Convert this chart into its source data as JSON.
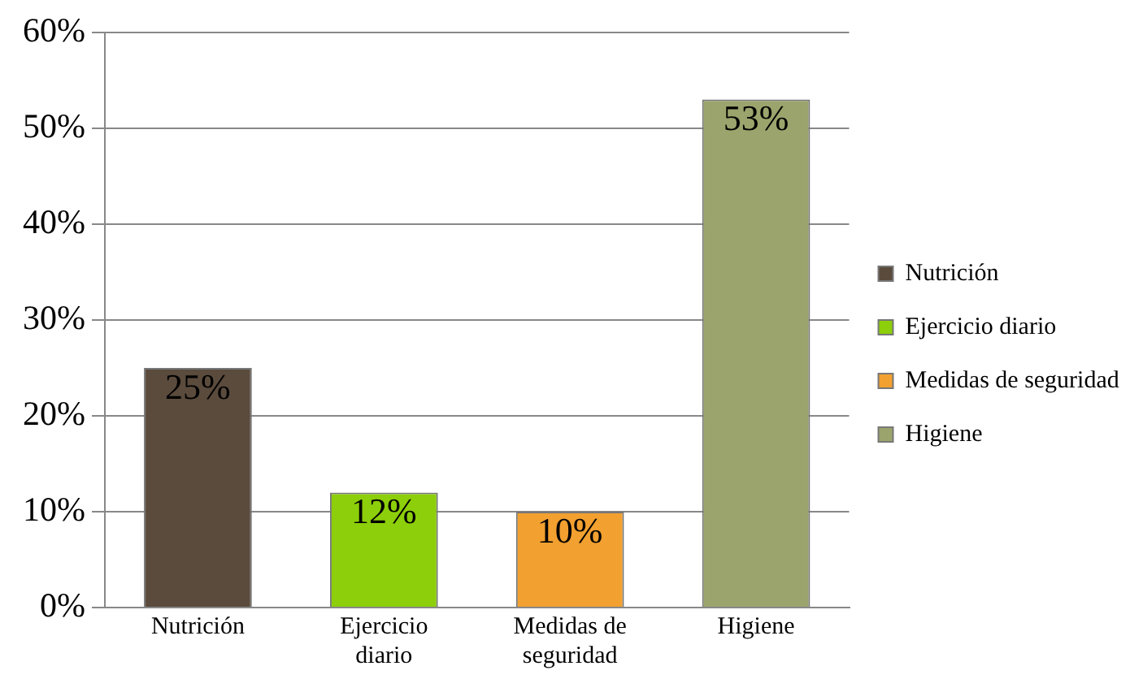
{
  "chart_data": {
    "type": "bar",
    "categories": [
      "Nutrición",
      "Ejercicio diario",
      "Medidas de seguridad",
      "Higiene"
    ],
    "series": [
      {
        "name": "Nutrición",
        "color": "#5a4b3d",
        "values": [
          25,
          null,
          null,
          null
        ],
        "value_labels": [
          "25%",
          null,
          null,
          null
        ]
      },
      {
        "name": "Ejercicio diario",
        "color": "#8ccf0a",
        "values": [
          null,
          12,
          null,
          null
        ],
        "value_labels": [
          null,
          "12%",
          null,
          null
        ]
      },
      {
        "name": "Medidas de seguridad",
        "color": "#f2a030",
        "values": [
          null,
          null,
          10,
          null
        ],
        "value_labels": [
          null,
          null,
          "10%",
          null
        ]
      },
      {
        "name": "Higiene",
        "color": "#9ba46c",
        "values": [
          null,
          null,
          null,
          53
        ],
        "value_labels": [
          null,
          null,
          null,
          "53%"
        ]
      }
    ],
    "ylim": [
      0,
      60
    ],
    "yticks": [
      {
        "value": 0,
        "label": "0%"
      },
      {
        "value": 10,
        "label": "10%"
      },
      {
        "value": 20,
        "label": "20%"
      },
      {
        "value": 30,
        "label": "30%"
      },
      {
        "value": 40,
        "label": "40%"
      },
      {
        "value": 50,
        "label": "50%"
      },
      {
        "value": 60,
        "label": "60%"
      }
    ],
    "grid": "y",
    "legend": "right"
  }
}
